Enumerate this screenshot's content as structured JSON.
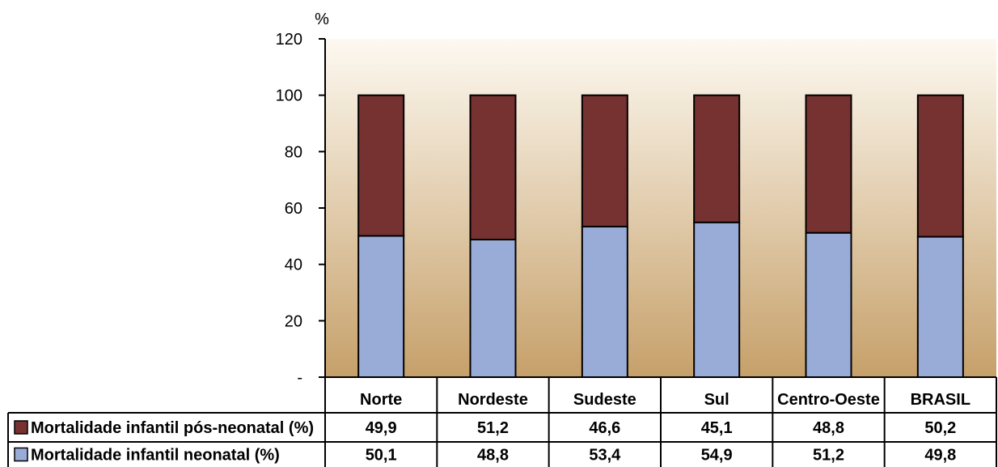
{
  "chart_data": {
    "type": "bar",
    "stacked": true,
    "unit": "%",
    "categories": [
      "Norte",
      "Nordeste",
      "Sudeste",
      "Sul",
      "Centro-Oeste",
      "BRASIL"
    ],
    "series": [
      {
        "name": "Mortalidade infantil neonatal (%)",
        "color": "#99acd8",
        "values": [
          50.1,
          48.8,
          53.4,
          54.9,
          51.2,
          49.8
        ],
        "labels": [
          "50,1",
          "48,8",
          "53,4",
          "54,9",
          "51,2",
          "49,8"
        ]
      },
      {
        "name": "Mortalidade infantil pós-neonatal (%)",
        "color": "#763131",
        "values": [
          49.9,
          51.2,
          46.6,
          45.1,
          48.8,
          50.2
        ],
        "labels": [
          "49,9",
          "51,2",
          "46,6",
          "45,1",
          "48,8",
          "50,2"
        ]
      }
    ],
    "ylim": [
      0,
      120
    ],
    "yticks": [
      {
        "value": 0,
        "label": "-"
      },
      {
        "value": 20,
        "label": "20"
      },
      {
        "value": 40,
        "label": "40"
      },
      {
        "value": 60,
        "label": "60"
      },
      {
        "value": 80,
        "label": "80"
      },
      {
        "value": 100,
        "label": "100"
      },
      {
        "value": 120,
        "label": "120"
      }
    ],
    "grid": false,
    "legend": "data-table",
    "table_row_order": [
      "Mortalidade infantil pós-neonatal (%)",
      "Mortalidade infantil neonatal (%)"
    ],
    "plot_background": {
      "top": "#fdf9f1",
      "bottom": "#c6a06a"
    }
  }
}
